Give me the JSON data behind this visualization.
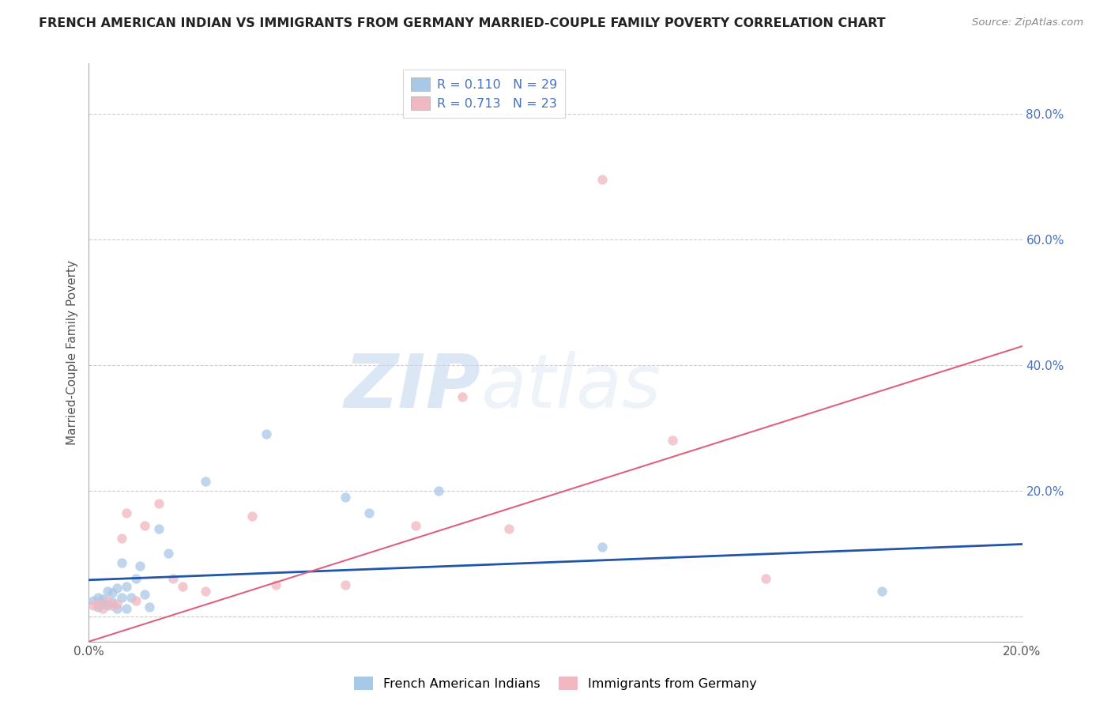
{
  "title": "FRENCH AMERICAN INDIAN VS IMMIGRANTS FROM GERMANY MARRIED-COUPLE FAMILY POVERTY CORRELATION CHART",
  "source": "Source: ZipAtlas.com",
  "ylabel": "Married-Couple Family Poverty",
  "xlabel": "",
  "xlim": [
    0.0,
    0.2
  ],
  "ylim": [
    -0.04,
    0.88
  ],
  "yticks": [
    0.0,
    0.2,
    0.4,
    0.6,
    0.8
  ],
  "ytick_labels": [
    "",
    "20.0%",
    "40.0%",
    "60.0%",
    "80.0%"
  ],
  "xticks": [
    0.0,
    0.05,
    0.1,
    0.15,
    0.2
  ],
  "xtick_labels": [
    "0.0%",
    "",
    "",
    "",
    "20.0%"
  ],
  "watermark_zip": "ZIP",
  "watermark_atlas": "atlas",
  "legend_r1": "R = 0.110",
  "legend_n1": "N = 29",
  "legend_r2": "R = 0.713",
  "legend_n2": "N = 23",
  "color_blue": "#a8c8e8",
  "color_pink": "#f0b8c0",
  "line_blue": "#2255aa",
  "line_pink": "#e06080",
  "grid_color": "#cccccc",
  "blue_scatter_x": [
    0.001,
    0.002,
    0.002,
    0.003,
    0.003,
    0.004,
    0.004,
    0.005,
    0.005,
    0.006,
    0.006,
    0.007,
    0.007,
    0.008,
    0.008,
    0.009,
    0.01,
    0.011,
    0.012,
    0.013,
    0.015,
    0.017,
    0.025,
    0.038,
    0.055,
    0.06,
    0.075,
    0.11,
    0.17
  ],
  "blue_scatter_y": [
    0.025,
    0.015,
    0.03,
    0.02,
    0.028,
    0.018,
    0.04,
    0.022,
    0.038,
    0.045,
    0.012,
    0.085,
    0.03,
    0.048,
    0.012,
    0.03,
    0.06,
    0.08,
    0.035,
    0.015,
    0.14,
    0.1,
    0.215,
    0.29,
    0.19,
    0.165,
    0.2,
    0.11,
    0.04
  ],
  "pink_scatter_x": [
    0.001,
    0.002,
    0.003,
    0.004,
    0.005,
    0.006,
    0.007,
    0.008,
    0.01,
    0.012,
    0.015,
    0.018,
    0.02,
    0.025,
    0.035,
    0.04,
    0.055,
    0.07,
    0.08,
    0.09,
    0.11,
    0.125,
    0.145
  ],
  "pink_scatter_y": [
    0.018,
    0.02,
    0.012,
    0.025,
    0.018,
    0.02,
    0.125,
    0.165,
    0.025,
    0.145,
    0.18,
    0.06,
    0.048,
    0.04,
    0.16,
    0.05,
    0.05,
    0.145,
    0.35,
    0.14,
    0.695,
    0.28,
    0.06
  ],
  "blue_trend_x0": 0.0,
  "blue_trend_x1": 0.2,
  "blue_trend_y0": 0.058,
  "blue_trend_y1": 0.115,
  "pink_trend_x0": 0.0,
  "pink_trend_x1": 0.2,
  "pink_trend_y0": -0.04,
  "pink_trend_y1": 0.43
}
